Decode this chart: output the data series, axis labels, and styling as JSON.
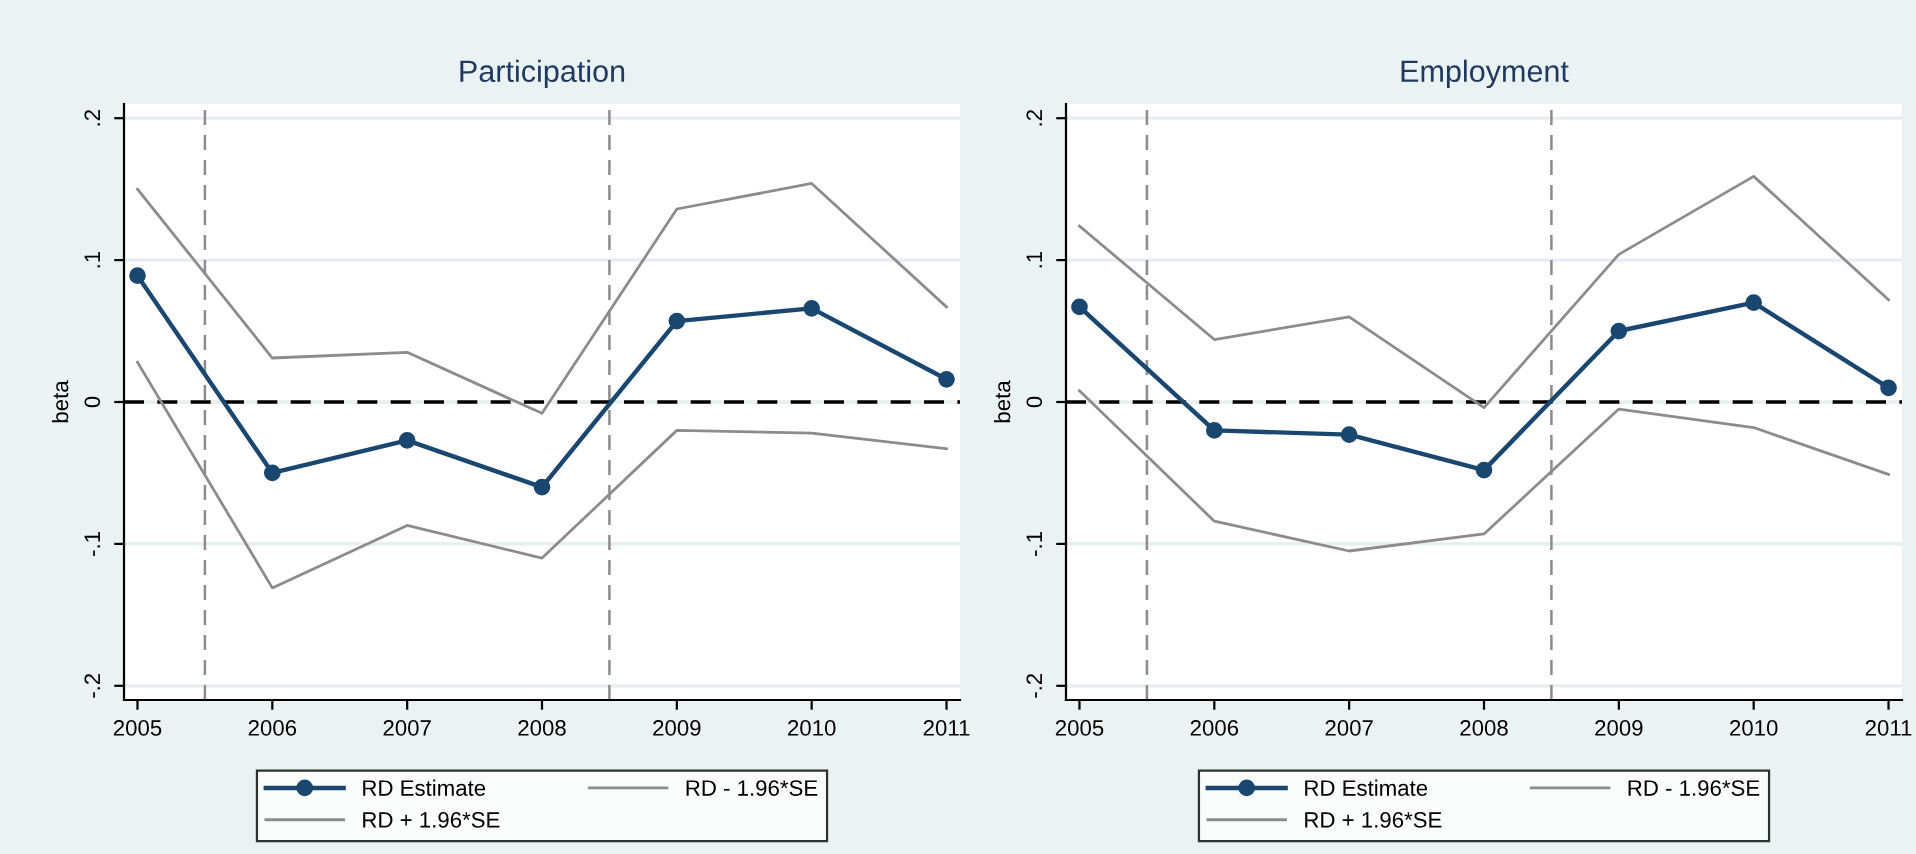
{
  "chart_data": [
    {
      "type": "line",
      "title": "Participation",
      "ylabel": "beta",
      "x": [
        2005,
        2006,
        2007,
        2008,
        2009,
        2010,
        2011
      ],
      "series": [
        {
          "name": "RD Estimate",
          "color": "#1a476f",
          "marker": "circle",
          "values": [
            0.089,
            -0.05,
            -0.027,
            -0.06,
            0.057,
            0.066,
            0.016
          ]
        },
        {
          "name": "RD + 1.96*SE",
          "color": "#8c8c8c",
          "marker": "none",
          "values": [
            0.15,
            0.031,
            0.035,
            -0.008,
            0.136,
            0.154,
            0.067
          ]
        },
        {
          "name": "RD - 1.96*SE",
          "color": "#8c8c8c",
          "marker": "none",
          "values": [
            0.028,
            -0.131,
            -0.087,
            -0.11,
            -0.02,
            -0.022,
            -0.033
          ]
        }
      ],
      "xlim": [
        2004.9,
        2011.1
      ],
      "xticks": [
        2005,
        2006,
        2007,
        2008,
        2009,
        2010,
        2011
      ],
      "ylim": [
        -0.21,
        0.21
      ],
      "yticks": [
        {
          "value": -0.2,
          "label": "-.2"
        },
        {
          "value": -0.1,
          "label": "-.1"
        },
        0,
        {
          "value": 0.1,
          "label": ".1"
        },
        {
          "value": 0.2,
          "label": ".2"
        }
      ],
      "ref_lines": [
        {
          "axis": "y",
          "value": 0,
          "color": "#000000",
          "line_style": "dashed"
        },
        {
          "axis": "x",
          "value": 2005.5,
          "color": "#8c8c8c",
          "line_style": "dashed"
        },
        {
          "axis": "x",
          "value": 2008.5,
          "color": "#8c8c8c",
          "line_style": "dashed"
        }
      ],
      "grid": "y",
      "legend": "bottom",
      "line_style": "solid"
    },
    {
      "type": "line",
      "title": "Employment",
      "ylabel": "beta",
      "x": [
        2005,
        2006,
        2007,
        2008,
        2009,
        2010,
        2011
      ],
      "series": [
        {
          "name": "RD Estimate",
          "color": "#1a476f",
          "marker": "circle",
          "values": [
            0.067,
            -0.02,
            -0.023,
            -0.048,
            0.05,
            0.07,
            0.01
          ]
        },
        {
          "name": "RD + 1.96*SE",
          "color": "#8c8c8c",
          "marker": "none",
          "values": [
            0.124,
            0.044,
            0.06,
            -0.004,
            0.104,
            0.159,
            0.072
          ]
        },
        {
          "name": "RD - 1.96*SE",
          "color": "#8c8c8c",
          "marker": "none",
          "values": [
            0.008,
            -0.084,
            -0.105,
            -0.093,
            -0.005,
            -0.018,
            -0.051
          ]
        }
      ],
      "xlim": [
        2004.9,
        2011.1
      ],
      "xticks": [
        2005,
        2006,
        2007,
        2008,
        2009,
        2010,
        2011
      ],
      "ylim": [
        -0.21,
        0.21
      ],
      "yticks": [
        {
          "value": -0.2,
          "label": "-.2"
        },
        {
          "value": -0.1,
          "label": "-.1"
        },
        0,
        {
          "value": 0.1,
          "label": ".1"
        },
        {
          "value": 0.2,
          "label": ".2"
        }
      ],
      "ref_lines": [
        {
          "axis": "y",
          "value": 0,
          "color": "#000000",
          "line_style": "dashed"
        },
        {
          "axis": "x",
          "value": 2005.5,
          "color": "#8c8c8c",
          "line_style": "dashed"
        },
        {
          "axis": "x",
          "value": 2008.5,
          "color": "#8c8c8c",
          "line_style": "dashed"
        }
      ],
      "grid": "y",
      "legend": "bottom",
      "line_style": "solid"
    }
  ]
}
